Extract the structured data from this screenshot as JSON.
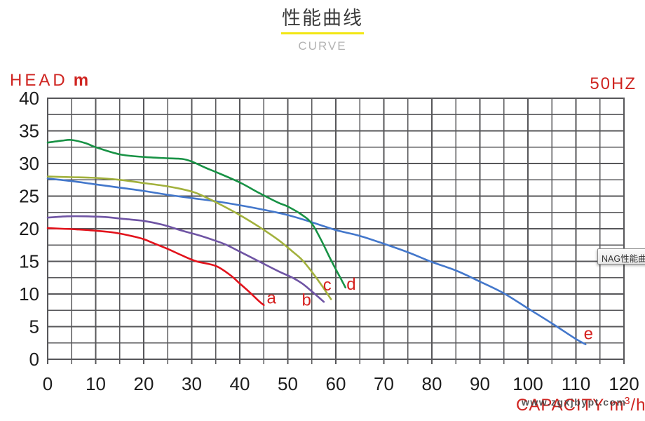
{
  "title": {
    "text": "性能曲线",
    "subtitle": "CURVE"
  },
  "axis_labels": {
    "head": "HEAD",
    "head_unit": "m",
    "frequency": "50HZ",
    "capacity_prefix": "CAPACITY m",
    "capacity_sup": "3",
    "capacity_suffix": "/h"
  },
  "tooltip": {
    "text": "NAG性能曲"
  },
  "watermark": {
    "text": "www.zgxjbypt.com"
  },
  "colors": {
    "accent_red_text": "#cf2420",
    "grid": "#57575a",
    "tick_text": "#1c1c1c",
    "title_underline": "#f2e713",
    "curve_label": "#d6201e"
  },
  "chart_data": {
    "type": "line",
    "title": "性能曲线 (CURVE)",
    "xlabel": "CAPACITY m3/h",
    "ylabel": "HEAD m",
    "frequency": "50HZ",
    "xlim": [
      0,
      120
    ],
    "ylim": [
      0,
      40
    ],
    "x_ticks": [
      0,
      10,
      20,
      30,
      40,
      50,
      60,
      70,
      80,
      90,
      100,
      110,
      120
    ],
    "y_ticks": [
      0,
      5,
      10,
      15,
      20,
      25,
      30,
      35,
      40
    ],
    "x_minor_step": 5,
    "y_minor_step": 2.5,
    "grid": true,
    "legend_position": "inline-labels",
    "series": [
      {
        "name": "e",
        "color": "#4377cb",
        "label": {
          "text": "e",
          "q": 112.6,
          "h": 3.9
        },
        "points": [
          [
            0,
            27.7
          ],
          [
            5,
            27.3
          ],
          [
            10,
            26.8
          ],
          [
            15,
            26.3
          ],
          [
            20,
            25.8
          ],
          [
            25,
            25.2
          ],
          [
            30,
            24.7
          ],
          [
            35,
            24.2
          ],
          [
            40,
            23.6
          ],
          [
            45,
            22.9
          ],
          [
            50,
            22.1
          ],
          [
            55,
            21.0
          ],
          [
            60,
            19.8
          ],
          [
            65,
            18.9
          ],
          [
            70,
            17.7
          ],
          [
            75,
            16.4
          ],
          [
            80,
            14.9
          ],
          [
            85,
            13.6
          ],
          [
            90,
            11.9
          ],
          [
            95,
            10.1
          ],
          [
            100,
            7.8
          ],
          [
            105,
            5.5
          ],
          [
            110,
            3.1
          ],
          [
            112,
            2.3
          ]
        ]
      },
      {
        "name": "a",
        "color": "#e2121b",
        "label": {
          "text": "a",
          "q": 46.6,
          "h": 9.4
        },
        "points": [
          [
            0,
            20.1
          ],
          [
            3,
            20.0
          ],
          [
            6,
            19.9
          ],
          [
            10,
            19.7
          ],
          [
            14,
            19.4
          ],
          [
            18,
            18.8
          ],
          [
            20,
            18.4
          ],
          [
            22,
            17.8
          ],
          [
            25,
            16.9
          ],
          [
            28,
            15.9
          ],
          [
            31,
            15.0
          ],
          [
            35,
            14.3
          ],
          [
            38,
            12.9
          ],
          [
            40,
            11.6
          ],
          [
            42,
            10.3
          ],
          [
            44,
            8.9
          ],
          [
            45,
            8.3
          ]
        ]
      },
      {
        "name": "b",
        "color": "#6f54a4",
        "label": {
          "text": "b",
          "q": 53.9,
          "h": 9.1
        },
        "points": [
          [
            0,
            21.7
          ],
          [
            4,
            21.9
          ],
          [
            8,
            21.9
          ],
          [
            12,
            21.8
          ],
          [
            16,
            21.5
          ],
          [
            20,
            21.2
          ],
          [
            24,
            20.6
          ],
          [
            28,
            19.7
          ],
          [
            31,
            19.1
          ],
          [
            34,
            18.4
          ],
          [
            37,
            17.6
          ],
          [
            40,
            16.5
          ],
          [
            44,
            15.0
          ],
          [
            48,
            13.5
          ],
          [
            51,
            12.5
          ],
          [
            53,
            11.6
          ],
          [
            55,
            10.4
          ],
          [
            57.5,
            8.8
          ]
        ]
      },
      {
        "name": "c",
        "color": "#a2b13c",
        "label": {
          "text": "c",
          "q": 58.2,
          "h": 11.4
        },
        "points": [
          [
            0,
            28.0
          ],
          [
            5,
            27.9
          ],
          [
            10,
            27.8
          ],
          [
            15,
            27.5
          ],
          [
            20,
            27.0
          ],
          [
            25,
            26.5
          ],
          [
            30,
            25.7
          ],
          [
            33,
            24.8
          ],
          [
            36,
            23.7
          ],
          [
            40,
            22.1
          ],
          [
            44,
            20.3
          ],
          [
            48,
            18.3
          ],
          [
            51,
            16.5
          ],
          [
            53,
            15.2
          ],
          [
            55,
            13.4
          ],
          [
            57,
            11.4
          ],
          [
            59,
            9.2
          ]
        ]
      },
      {
        "name": "d",
        "color": "#189245",
        "label": {
          "text": "d",
          "q": 63.2,
          "h": 11.5
        },
        "points": [
          [
            0,
            33.2
          ],
          [
            3,
            33.5
          ],
          [
            5,
            33.6
          ],
          [
            8,
            33.1
          ],
          [
            10,
            32.5
          ],
          [
            15,
            31.4
          ],
          [
            20,
            31.0
          ],
          [
            25,
            30.8
          ],
          [
            28,
            30.7
          ],
          [
            30,
            30.3
          ],
          [
            33,
            29.3
          ],
          [
            35,
            28.7
          ],
          [
            40,
            27.1
          ],
          [
            44,
            25.5
          ],
          [
            48,
            24.0
          ],
          [
            50,
            23.4
          ],
          [
            53,
            22.1
          ],
          [
            55,
            20.8
          ],
          [
            57,
            18.2
          ],
          [
            59,
            15.2
          ],
          [
            61,
            12.4
          ],
          [
            62,
            11.0
          ]
        ]
      }
    ]
  }
}
